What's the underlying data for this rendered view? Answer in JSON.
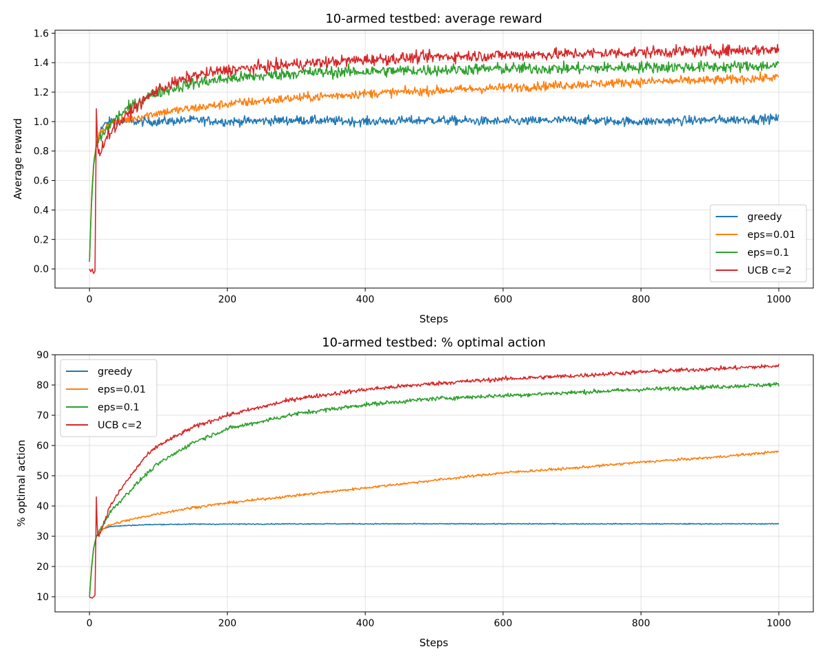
{
  "chart_data": [
    {
      "type": "line",
      "title": "10-armed testbed: average reward",
      "xlabel": "Steps",
      "ylabel": "Average reward",
      "xlim": [
        -50,
        1050
      ],
      "ylim": [
        -0.13,
        1.62
      ],
      "xticks": [
        0,
        200,
        400,
        600,
        800,
        1000
      ],
      "yticks": [
        0.0,
        0.2,
        0.4,
        0.6,
        0.8,
        1.0,
        1.2,
        1.4,
        1.6
      ],
      "grid": true,
      "legend_position": "lower-right",
      "series": [
        {
          "name": "greedy",
          "color": "#1f77b4",
          "x": [
            0,
            3,
            6,
            10,
            15,
            20,
            30,
            40,
            50,
            60,
            80,
            100,
            150,
            200,
            300,
            400,
            500,
            600,
            700,
            800,
            900,
            1000
          ],
          "y": [
            0.05,
            0.45,
            0.7,
            0.85,
            0.93,
            0.97,
            1.0,
            1.01,
            1.0,
            1.0,
            1.0,
            1.0,
            1.01,
            1.0,
            1.01,
            1.0,
            1.01,
            1.0,
            1.01,
            1.0,
            1.01,
            1.02
          ],
          "noise": 0.022
        },
        {
          "name": "eps=0.01",
          "color": "#ff7f0e",
          "x": [
            0,
            3,
            6,
            10,
            15,
            20,
            30,
            40,
            50,
            60,
            80,
            100,
            150,
            200,
            300,
            400,
            500,
            600,
            700,
            800,
            900,
            1000
          ],
          "y": [
            0.05,
            0.5,
            0.72,
            0.85,
            0.92,
            0.95,
            0.99,
            1.0,
            1.01,
            1.02,
            1.04,
            1.06,
            1.09,
            1.12,
            1.16,
            1.19,
            1.21,
            1.23,
            1.25,
            1.27,
            1.28,
            1.3
          ],
          "noise": 0.022
        },
        {
          "name": "eps=0.1",
          "color": "#2ca02c",
          "x": [
            0,
            3,
            6,
            10,
            15,
            20,
            30,
            40,
            50,
            60,
            80,
            100,
            150,
            200,
            300,
            400,
            500,
            600,
            700,
            800,
            900,
            1000
          ],
          "y": [
            0.05,
            0.45,
            0.7,
            0.83,
            0.88,
            0.92,
            0.98,
            1.03,
            1.07,
            1.1,
            1.16,
            1.2,
            1.26,
            1.29,
            1.33,
            1.34,
            1.35,
            1.36,
            1.36,
            1.37,
            1.37,
            1.38
          ],
          "noise": 0.028
        },
        {
          "name": "UCB c=2",
          "color": "#d62728",
          "x": [
            0,
            2,
            4,
            6,
            8,
            9,
            10,
            11,
            12,
            14,
            17,
            20,
            30,
            40,
            50,
            60,
            80,
            100,
            150,
            200,
            300,
            400,
            500,
            600,
            700,
            800,
            900,
            1000
          ],
          "y": [
            0.0,
            -0.02,
            0.0,
            -0.03,
            -0.02,
            0.5,
            1.08,
            0.95,
            0.82,
            0.78,
            0.8,
            0.86,
            0.93,
            0.98,
            1.02,
            1.07,
            1.15,
            1.22,
            1.31,
            1.35,
            1.39,
            1.42,
            1.44,
            1.45,
            1.46,
            1.47,
            1.48,
            1.49
          ],
          "noise": 0.028
        }
      ]
    },
    {
      "type": "line",
      "title": "10-armed testbed: % optimal action",
      "xlabel": "Steps",
      "ylabel": "% optimal action",
      "xlim": [
        -50,
        1050
      ],
      "ylim": [
        5,
        90
      ],
      "xticks": [
        0,
        200,
        400,
        600,
        800,
        1000
      ],
      "yticks": [
        10,
        20,
        30,
        40,
        50,
        60,
        70,
        80,
        90
      ],
      "grid": true,
      "legend_position": "upper-left",
      "series": [
        {
          "name": "greedy",
          "color": "#1f77b4",
          "x": [
            0,
            3,
            6,
            10,
            15,
            20,
            30,
            50,
            80,
            100,
            150,
            200,
            300,
            400,
            500,
            600,
            700,
            800,
            900,
            1000
          ],
          "y": [
            10,
            20,
            26,
            30,
            31.5,
            32.5,
            33.2,
            33.5,
            33.8,
            33.9,
            34,
            34,
            34.1,
            34.1,
            34.1,
            34.1,
            34.1,
            34.1,
            34.1,
            34.1
          ],
          "noise": 0.12
        },
        {
          "name": "eps=0.01",
          "color": "#ff7f0e",
          "x": [
            0,
            3,
            6,
            10,
            15,
            20,
            30,
            50,
            80,
            100,
            150,
            200,
            300,
            400,
            500,
            600,
            700,
            800,
            900,
            1000
          ],
          "y": [
            10,
            20,
            26,
            30,
            31.5,
            32.5,
            33.7,
            35,
            36.5,
            37.5,
            39.5,
            41,
            43.5,
            46,
            48.5,
            51,
            52.5,
            54.5,
            56,
            58
          ],
          "noise": 0.3
        },
        {
          "name": "eps=0.1",
          "color": "#2ca02c",
          "x": [
            0,
            3,
            6,
            10,
            15,
            20,
            30,
            50,
            80,
            100,
            150,
            200,
            300,
            400,
            500,
            600,
            700,
            800,
            900,
            1000
          ],
          "y": [
            10,
            19,
            26,
            30,
            32,
            34,
            38,
            43,
            50,
            54,
            61,
            65.5,
            70.5,
            73.5,
            75.5,
            76.5,
            77.5,
            78.5,
            79.3,
            80.2
          ],
          "noise": 0.5
        },
        {
          "name": "UCB c=2",
          "color": "#d62728",
          "x": [
            0,
            2,
            4,
            6,
            8,
            9,
            10,
            11,
            12,
            14,
            17,
            20,
            30,
            50,
            80,
            100,
            150,
            200,
            300,
            400,
            500,
            600,
            700,
            800,
            900,
            1000
          ],
          "y": [
            9.5,
            10,
            9.5,
            10,
            10.5,
            25,
            43,
            35,
            31,
            30,
            32,
            34,
            40,
            47,
            56,
            60,
            66,
            70,
            75.5,
            78.5,
            80.5,
            82,
            83,
            84.3,
            85.3,
            86.3
          ],
          "noise": 0.5
        }
      ]
    }
  ]
}
